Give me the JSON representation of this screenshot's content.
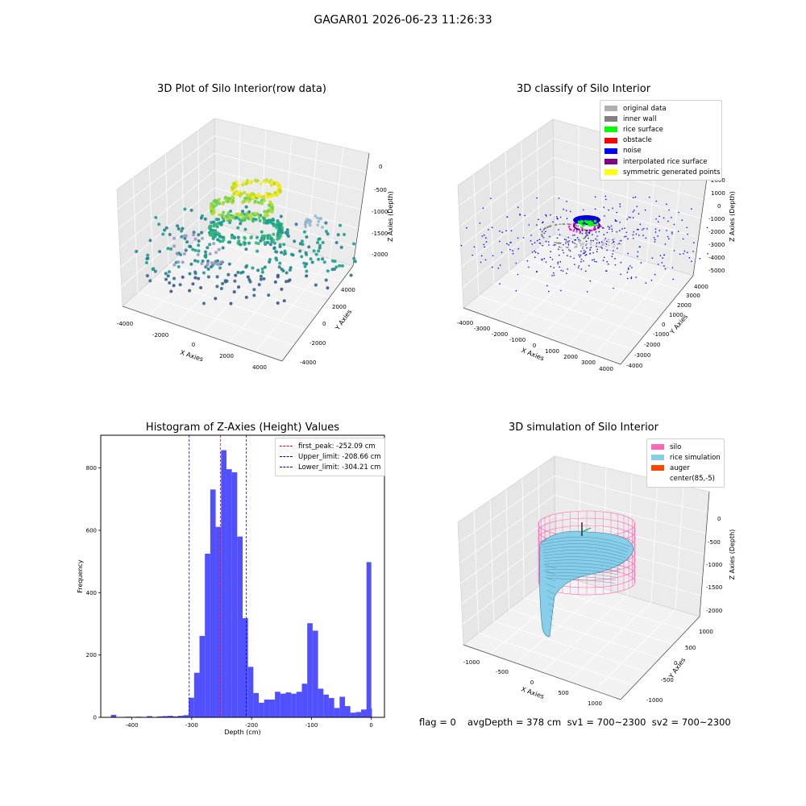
{
  "suptitle": "GAGAR01 2026-06-23 11:26:33",
  "footer": {
    "flag": "flag = 0",
    "stats": "avgDepth = 378 cm  sv1 = 700~2300  sv2 = 700~2300"
  },
  "chart_data": [
    {
      "type": "scatter",
      "title": "3D Plot of Silo Interior(row data)",
      "xlabel": "X Axies",
      "ylabel": "Y Axies",
      "zlabel": "Z Axies (Depth)",
      "x_ticks": [
        "-4000",
        "-2000",
        "0",
        "2000",
        "4000"
      ],
      "y_ticks": [
        "-4000",
        "-2000",
        "0",
        "2000",
        "4000"
      ],
      "z_ticks": [
        "0",
        "-500",
        "-1000",
        "-1500",
        "-2000"
      ],
      "colormap": "viridis",
      "grid": true
    },
    {
      "type": "scatter",
      "title": "3D classify of Silo Interior",
      "xlabel": "X Axies",
      "ylabel": "Y Axies",
      "zlabel": "Z Axies (Depth)",
      "x_ticks": [
        "-4000",
        "-3000",
        "-2000",
        "-1000",
        "0",
        "1000",
        "2000",
        "3000",
        "4000"
      ],
      "y_ticks": [
        "-4000",
        "-3000",
        "-2000",
        "-1000",
        "0",
        "1000",
        "2000",
        "3000",
        "4000"
      ],
      "z_ticks": [
        "2000",
        "1000",
        "0",
        "-1000",
        "-2000",
        "-3000",
        "-4000",
        "-5000"
      ],
      "legend_position": "top-right",
      "legend": [
        {
          "label": "original data",
          "color": "#b0b0b0"
        },
        {
          "label": "inner wall",
          "color": "#808080"
        },
        {
          "label": "rice surface",
          "color": "#00ff00"
        },
        {
          "label": "obstacle",
          "color": "#ff0000"
        },
        {
          "label": "noise",
          "color": "#0000ff"
        },
        {
          "label": "interpolated rice surface",
          "color": "#800080"
        },
        {
          "label": "symmetric generated points",
          "color": "#ffff00"
        }
      ],
      "grid": true
    },
    {
      "type": "bar",
      "title": "Histogram of Z-Axies (Height) Values",
      "xlabel": "Depth (cm)",
      "ylabel": "Frequency",
      "xlim": [
        -452,
        22
      ],
      "ylim": [
        0,
        905
      ],
      "x_ticks": [
        -400,
        -300,
        -200,
        -100,
        0
      ],
      "y_ticks": [
        0,
        200,
        400,
        600,
        800
      ],
      "bar_color": "#5050ff",
      "bins": [
        [
          -435,
          -426,
          8
        ],
        [
          -410,
          -401,
          2
        ],
        [
          -402,
          -393,
          1
        ],
        [
          -393,
          -384,
          2
        ],
        [
          -375,
          -366,
          4
        ],
        [
          -358,
          -349,
          3
        ],
        [
          -349,
          -340,
          4
        ],
        [
          -340,
          -331,
          5
        ],
        [
          -332,
          -323,
          3
        ],
        [
          -323,
          -314,
          5
        ],
        [
          -314,
          -305,
          7
        ],
        [
          -305,
          -296,
          63
        ],
        [
          -296,
          -287,
          143
        ],
        [
          -287,
          -278,
          261
        ],
        [
          -278,
          -269,
          525
        ],
        [
          -269,
          -260,
          731
        ],
        [
          -260,
          -251,
          611
        ],
        [
          -251,
          -242,
          857
        ],
        [
          -242,
          -233,
          796
        ],
        [
          -233,
          -224,
          786
        ],
        [
          -224,
          -215,
          580
        ],
        [
          -215,
          -206,
          318
        ],
        [
          -206,
          -197,
          162
        ],
        [
          -197,
          -188,
          78
        ],
        [
          -188,
          -179,
          47
        ],
        [
          -179,
          -170,
          57
        ],
        [
          -170,
          -161,
          57
        ],
        [
          -161,
          -152,
          82
        ],
        [
          -152,
          -143,
          76
        ],
        [
          -143,
          -134,
          80
        ],
        [
          -134,
          -125,
          76
        ],
        [
          -125,
          -116,
          82
        ],
        [
          -116,
          -107,
          108
        ],
        [
          -107,
          -98,
          302
        ],
        [
          -98,
          -89,
          278
        ],
        [
          -89,
          -80,
          92
        ],
        [
          -80,
          -71,
          73
        ],
        [
          -71,
          -62,
          62
        ],
        [
          -62,
          -53,
          30
        ],
        [
          -53,
          -44,
          66
        ],
        [
          -44,
          -35,
          36
        ],
        [
          -35,
          -26,
          15
        ],
        [
          -26,
          -17,
          17
        ],
        [
          -17,
          -8,
          25
        ],
        [
          -8,
          1,
          28
        ],
        [
          -8,
          1,
          28
        ],
        [
          1,
          8,
          0
        ]
      ],
      "last_bin": [
        -8,
        0,
        498
      ],
      "markers": [
        {
          "label": "first_peak: -252.09 cm",
          "value": -252.09,
          "color": "#ff0000"
        },
        {
          "label": "Upper_limit: -208.66 cm",
          "value": -208.66,
          "color": "#0000cc"
        },
        {
          "label": "Lower_limit: -304.21 cm",
          "value": -304.21,
          "color": "#0000cc"
        }
      ],
      "legend_position": "top-right"
    },
    {
      "type": "surface",
      "title": "3D simulation of Silo Interior",
      "xlabel": "X Axies",
      "ylabel": "Y Axies",
      "zlabel": "Z Axies (Depth)",
      "x_ticks": [
        "-1000",
        "-500",
        "0",
        "500",
        "1000"
      ],
      "y_ticks": [
        "1000",
        "500",
        "0",
        "-500",
        "-1000"
      ],
      "z_ticks": [
        "0",
        "-500",
        "-1000",
        "-1500",
        "-2000"
      ],
      "legend_position": "top-right",
      "legend": [
        {
          "label": "silo",
          "color": "#ff69b4"
        },
        {
          "label": "rice simulation",
          "color": "#87ceeb"
        },
        {
          "label": "auger",
          "color": "#ff4500"
        },
        {
          "label": "center(85,-5)",
          "color": "#ffffff"
        }
      ],
      "grid": true
    }
  ]
}
